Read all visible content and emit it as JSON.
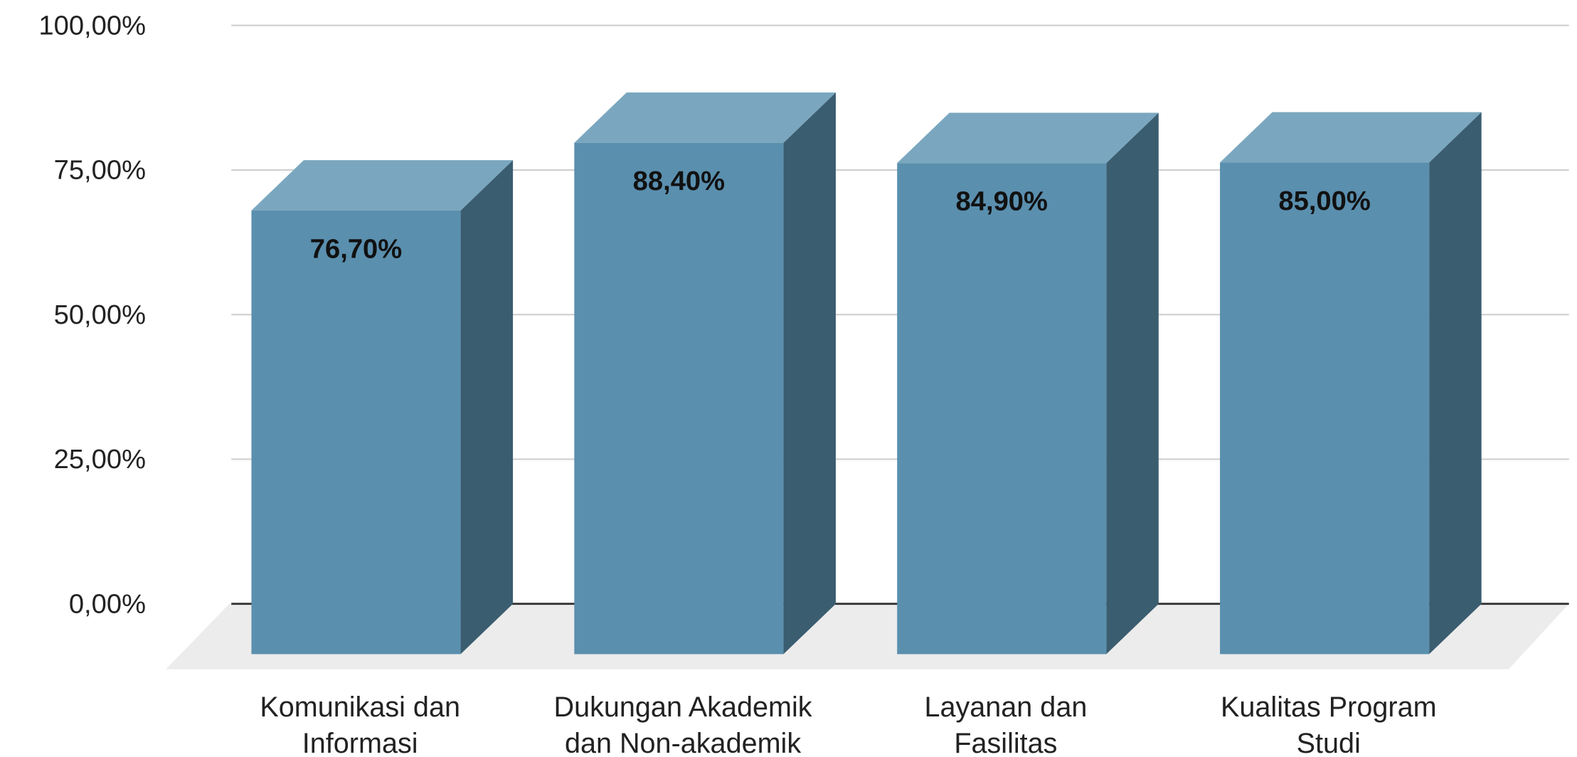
{
  "chart_data": {
    "type": "bar3d",
    "categories": [
      "Komunikasi dan Informasi",
      "Dukungan Akademik dan Non-akademik",
      "Layanan dan Fasilitas",
      "Kualitas Program Studi"
    ],
    "values": [
      76.7,
      88.4,
      84.9,
      85.0
    ],
    "value_labels": [
      "76,70%",
      "88,40%",
      "84,90%",
      "85,00%"
    ],
    "color": "#5a8fae",
    "ylim": [
      0,
      100
    ],
    "yticks": [
      {
        "value": 0,
        "label": "0,00%"
      },
      {
        "value": 25,
        "label": "25,00%"
      },
      {
        "value": 50,
        "label": "50,00%"
      },
      {
        "value": 75,
        "label": "75,00%"
      },
      {
        "value": 100,
        "label": "100,00%"
      }
    ],
    "grid": true
  }
}
